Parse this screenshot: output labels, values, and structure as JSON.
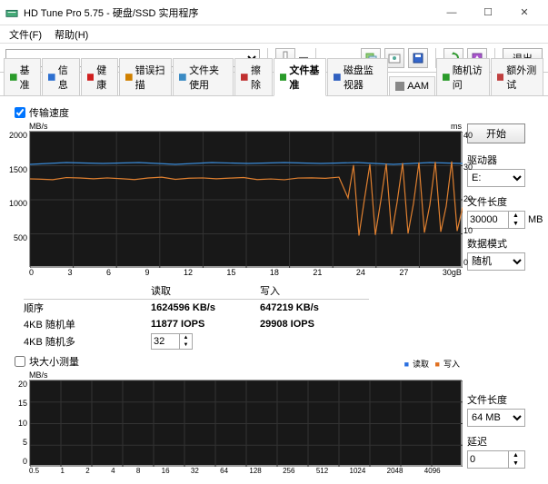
{
  "window": {
    "title": "HD Tune Pro 5.75 - 硬盘/SSD 实用程序"
  },
  "menu": {
    "file": "文件(F)",
    "help": "帮助(H)"
  },
  "toolbar": {
    "exit": "退出",
    "temp_icon_color": "#d00000"
  },
  "tabs": [
    {
      "label": "基准",
      "color": "#2a9b2a"
    },
    {
      "label": "信息",
      "color": "#2d6fd0"
    },
    {
      "label": "健康",
      "color": "#d02020"
    },
    {
      "label": "错误扫描",
      "color": "#d08000"
    },
    {
      "label": "文件夹使用",
      "color": "#3b8bc4"
    },
    {
      "label": "擦除",
      "color": "#c03030"
    },
    {
      "label": "文件基准",
      "color": "#2a9b2a"
    },
    {
      "label": "磁盘监视器",
      "color": "#3060c0"
    },
    {
      "label": "AAM",
      "color": "#888"
    },
    {
      "label": "随机访问",
      "color": "#2a9b2a"
    },
    {
      "label": "额外测试",
      "color": "#c04040"
    }
  ],
  "active_tab": 6,
  "section1": {
    "checkbox_label": "传输速度",
    "start_label": "开始",
    "drive_label": "驱动器",
    "drive_value": "E:",
    "file_len_label": "文件长度",
    "file_len_value": "30000",
    "file_len_unit": "MB",
    "data_mode_label": "数据模式",
    "data_mode_value": "随机",
    "chart": {
      "y_left_label": "MB/s",
      "y_right_label": "ms",
      "y_left_max": 2000,
      "y_left_ticks": [
        "2000",
        "1500",
        "1000",
        "500",
        ""
      ],
      "y_right_ticks": [
        "40",
        "30",
        "20",
        "10",
        "0"
      ],
      "x_ticks": [
        "0",
        "3",
        "6",
        "9",
        "12",
        "15",
        "18",
        "21",
        "24",
        "27",
        "30gB"
      ],
      "line1_color": "#3a8bd8",
      "line2_color": "#e08030",
      "grid_color": "#333333",
      "bg": "#181818"
    }
  },
  "results": {
    "col_read": "读取",
    "col_write": "写入",
    "row_seq": "顺序",
    "row_4k_single": "4KB 随机单",
    "row_4k_multi": "4KB 随机多",
    "seq_read": "1624596 KB/s",
    "seq_write": "647219 KB/s",
    "single_read": "11877 IOPS",
    "single_write": "29908 IOPS",
    "multi_spin": "32"
  },
  "section2": {
    "checkbox_label": "块大小测量",
    "file_len_label": "文件长度",
    "file_len_value": "64 MB",
    "delay_label": "延迟",
    "delay_value": "0",
    "legend_read": "读取",
    "legend_write": "写入",
    "read_color": "#2a6fe0",
    "write_color": "#e07020",
    "chart": {
      "y_label": "MB/s",
      "y_ticks": [
        "20",
        "15",
        "10",
        "5",
        "0"
      ],
      "x_ticks": [
        "0.5",
        "1",
        "2",
        "4",
        "8",
        "16",
        "32",
        "64",
        "128",
        "256",
        "512",
        "1024",
        "2048",
        "4096",
        ""
      ]
    }
  }
}
